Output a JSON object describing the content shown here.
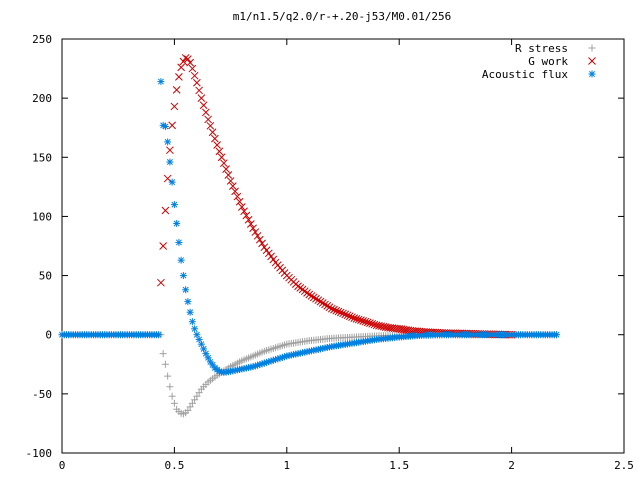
{
  "chart_data": {
    "type": "scatter",
    "title": "m1/n1.5/q2.0/r-+.20-j53/M0.01/256",
    "xlabel": "",
    "ylabel": "",
    "xlim": [
      0,
      2.5
    ],
    "ylim": [
      -100,
      250
    ],
    "xticks": [
      "0",
      "0.5",
      "1",
      "1.5",
      "2",
      "2.5"
    ],
    "yticks": [
      "-100",
      "-50",
      "0",
      "50",
      "100",
      "150",
      "200",
      "250"
    ],
    "grid": false,
    "legend_position": "top-right",
    "series": [
      {
        "name": "R stress",
        "marker": "plus",
        "color": "#a0a0a0",
        "points": [
          [
            0.0,
            0
          ],
          [
            0.1,
            0
          ],
          [
            0.2,
            0
          ],
          [
            0.3,
            0
          ],
          [
            0.4,
            0
          ],
          [
            0.44,
            0
          ],
          [
            0.45,
            -16
          ],
          [
            0.46,
            -25
          ],
          [
            0.47,
            -35
          ],
          [
            0.48,
            -44
          ],
          [
            0.49,
            -52
          ],
          [
            0.5,
            -58
          ],
          [
            0.51,
            -63
          ],
          [
            0.52,
            -65
          ],
          [
            0.53,
            -66.5
          ],
          [
            0.54,
            -67
          ],
          [
            0.55,
            -66
          ],
          [
            0.56,
            -64
          ],
          [
            0.58,
            -58
          ],
          [
            0.6,
            -52
          ],
          [
            0.62,
            -46
          ],
          [
            0.65,
            -40
          ],
          [
            0.7,
            -33
          ],
          [
            0.75,
            -27
          ],
          [
            0.8,
            -22
          ],
          [
            0.85,
            -18
          ],
          [
            0.9,
            -14
          ],
          [
            0.95,
            -11
          ],
          [
            1.0,
            -8
          ],
          [
            1.1,
            -5
          ],
          [
            1.2,
            -3
          ],
          [
            1.3,
            -2
          ],
          [
            1.4,
            -1
          ],
          [
            1.5,
            -0.5
          ],
          [
            1.6,
            0
          ],
          [
            1.8,
            0
          ],
          [
            2.0,
            0
          ],
          [
            2.2,
            0
          ]
        ]
      },
      {
        "name": "G work",
        "marker": "cross",
        "color": "#cc0000",
        "points": [
          [
            0.44,
            44
          ],
          [
            0.45,
            75
          ],
          [
            0.46,
            105
          ],
          [
            0.47,
            132
          ],
          [
            0.48,
            156
          ],
          [
            0.49,
            177
          ],
          [
            0.5,
            193
          ],
          [
            0.51,
            207
          ],
          [
            0.52,
            218
          ],
          [
            0.53,
            226
          ],
          [
            0.54,
            231
          ],
          [
            0.55,
            234
          ],
          [
            0.56,
            233
          ],
          [
            0.57,
            230
          ],
          [
            0.58,
            225
          ],
          [
            0.6,
            213
          ],
          [
            0.62,
            200
          ],
          [
            0.65,
            182
          ],
          [
            0.7,
            155
          ],
          [
            0.75,
            130
          ],
          [
            0.8,
            108
          ],
          [
            0.85,
            90
          ],
          [
            0.9,
            74
          ],
          [
            0.95,
            61
          ],
          [
            1.0,
            50
          ],
          [
            1.05,
            41
          ],
          [
            1.1,
            34
          ],
          [
            1.15,
            28
          ],
          [
            1.2,
            22
          ],
          [
            1.25,
            18
          ],
          [
            1.3,
            14
          ],
          [
            1.35,
            11
          ],
          [
            1.4,
            8
          ],
          [
            1.45,
            6
          ],
          [
            1.5,
            5
          ],
          [
            1.55,
            3.5
          ],
          [
            1.6,
            2.5
          ],
          [
            1.7,
            1.5
          ],
          [
            1.8,
            1
          ],
          [
            1.9,
            0.5
          ],
          [
            2.0,
            0
          ]
        ]
      },
      {
        "name": "Acoustic flux",
        "marker": "star",
        "color": "#0080e0",
        "points": [
          [
            0.0,
            0
          ],
          [
            0.1,
            0
          ],
          [
            0.2,
            0
          ],
          [
            0.3,
            0
          ],
          [
            0.4,
            0
          ],
          [
            0.43,
            0
          ],
          [
            0.44,
            214
          ],
          [
            0.45,
            177
          ],
          [
            0.46,
            176
          ],
          [
            0.47,
            163
          ],
          [
            0.48,
            146
          ],
          [
            0.49,
            129
          ],
          [
            0.5,
            110
          ],
          [
            0.51,
            94
          ],
          [
            0.52,
            78
          ],
          [
            0.53,
            63
          ],
          [
            0.54,
            50
          ],
          [
            0.55,
            38
          ],
          [
            0.56,
            28
          ],
          [
            0.57,
            19
          ],
          [
            0.58,
            11
          ],
          [
            0.59,
            5
          ],
          [
            0.6,
            0
          ],
          [
            0.62,
            -8
          ],
          [
            0.64,
            -16
          ],
          [
            0.66,
            -23
          ],
          [
            0.68,
            -28
          ],
          [
            0.7,
            -31
          ],
          [
            0.72,
            -32
          ],
          [
            0.75,
            -31
          ],
          [
            0.8,
            -29
          ],
          [
            0.85,
            -27
          ],
          [
            0.9,
            -24
          ],
          [
            0.95,
            -21
          ],
          [
            1.0,
            -18
          ],
          [
            1.1,
            -14
          ],
          [
            1.2,
            -10
          ],
          [
            1.3,
            -7
          ],
          [
            1.4,
            -4
          ],
          [
            1.5,
            -2
          ],
          [
            1.6,
            -0.5
          ],
          [
            1.7,
            0
          ],
          [
            1.8,
            0
          ],
          [
            2.0,
            0
          ],
          [
            2.2,
            0
          ]
        ]
      }
    ]
  }
}
